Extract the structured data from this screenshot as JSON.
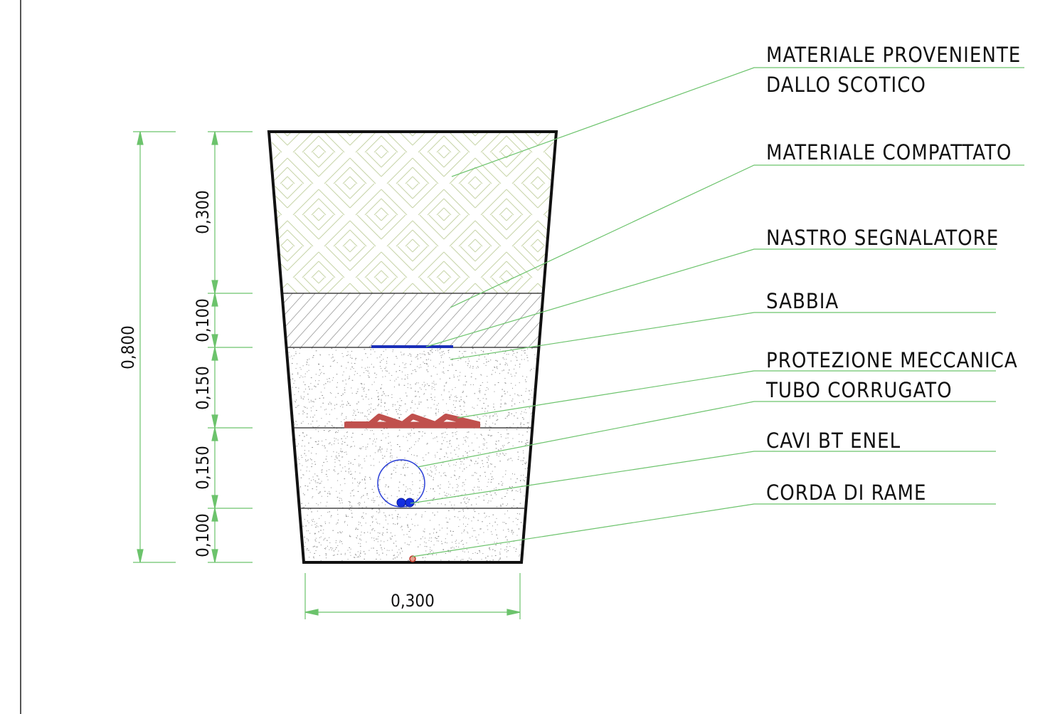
{
  "labels": [
    {
      "id": "scotico",
      "lines": [
        "MATERIALE PROVENIENTE",
        "DALLO SCOTICO"
      ]
    },
    {
      "id": "compattato",
      "lines": [
        "MATERIALE COMPATTATO"
      ]
    },
    {
      "id": "nastro",
      "lines": [
        "NASTRO SEGNALATORE"
      ]
    },
    {
      "id": "sabbia",
      "lines": [
        "SABBIA"
      ]
    },
    {
      "id": "protezione",
      "lines": [
        "PROTEZIONE MECCANICA"
      ]
    },
    {
      "id": "tubo",
      "lines": [
        "TUBO CORRUGATO"
      ]
    },
    {
      "id": "cavi",
      "lines": [
        "CAVI BT ENEL"
      ]
    },
    {
      "id": "corda",
      "lines": [
        "CORDA DI RAME"
      ]
    }
  ],
  "dimensions": {
    "total_depth": "0,800",
    "layers": [
      "0,300",
      "0,100",
      "0,150",
      "0,150",
      "0,100"
    ],
    "bottom_width": "0,300"
  },
  "colors": {
    "leader_lines": "#6cc36c",
    "outline": "#111111",
    "hatch_top": "#c7d4a8",
    "hatch_compacted": "#9a9a9a",
    "sand_dots": "#8a8a8a",
    "tape": "#1a2fb8",
    "mechanical_protection": "#c0504d",
    "pipe": "#2a3fd6",
    "cables": "#1530e0",
    "copper": "#c0392b",
    "frame_line": "#555555"
  }
}
